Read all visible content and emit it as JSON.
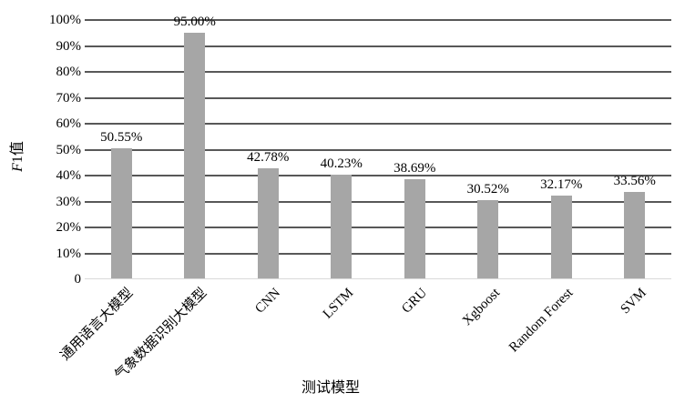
{
  "chart_data": {
    "type": "bar",
    "title": "",
    "categories": [
      "通用语言大模型",
      "气象数据识别大模型",
      "CNN",
      "LSTM",
      "GRU",
      "Xgboost",
      "Random Forest",
      "SVM"
    ],
    "values": [
      50.55,
      95.0,
      42.78,
      40.23,
      38.69,
      30.52,
      32.17,
      33.56
    ],
    "data_labels": [
      "50.55%",
      "95.00%",
      "42.78%",
      "40.23%",
      "38.69%",
      "30.52%",
      "32.17%",
      "33.56%"
    ],
    "xlabel": "测试模型",
    "ylabel": "F1值",
    "ylabel_parts": {
      "italic": "F",
      "rest": "1值"
    },
    "y_ticks": [
      "0",
      "10%",
      "20%",
      "30%",
      "40%",
      "50%",
      "60%",
      "70%",
      "80%",
      "90%",
      "100%"
    ],
    "ylim": [
      0,
      100
    ],
    "grid": true,
    "legend": "none",
    "colors": {
      "bar": "#a6a6a6",
      "gridline": "#585858",
      "baseline": "#d9d9d9",
      "text": "#000000",
      "background": "#ffffff"
    }
  }
}
